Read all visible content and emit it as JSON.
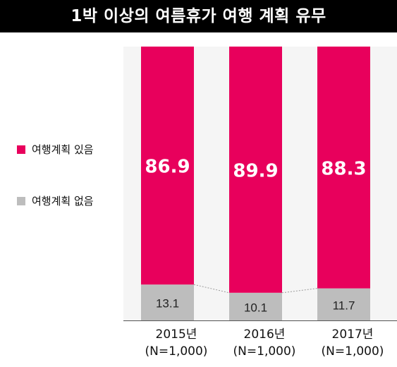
{
  "chart_data": {
    "type": "bar",
    "stacked": true,
    "title": "1박 이상의 여름휴가 여행 계획 유무",
    "categories": [
      {
        "year": "2015년",
        "n": "(N=1,000)"
      },
      {
        "year": "2016년",
        "n": "(N=1,000)"
      },
      {
        "year": "2017년",
        "n": "(N=1,000)"
      }
    ],
    "series": [
      {
        "name": "여행계획 있음",
        "color": "#e8005c",
        "values": [
          86.9,
          89.9,
          88.3
        ],
        "labels": [
          "86.9",
          "89.9",
          "88.3"
        ]
      },
      {
        "name": "여행계획 없음",
        "color": "#bdbdbd",
        "values": [
          13.1,
          10.1,
          11.7
        ],
        "labels": [
          "13.1",
          "10.1",
          "11.7"
        ]
      }
    ],
    "ylim": [
      0,
      100
    ],
    "legend": "left",
    "grid": false
  }
}
